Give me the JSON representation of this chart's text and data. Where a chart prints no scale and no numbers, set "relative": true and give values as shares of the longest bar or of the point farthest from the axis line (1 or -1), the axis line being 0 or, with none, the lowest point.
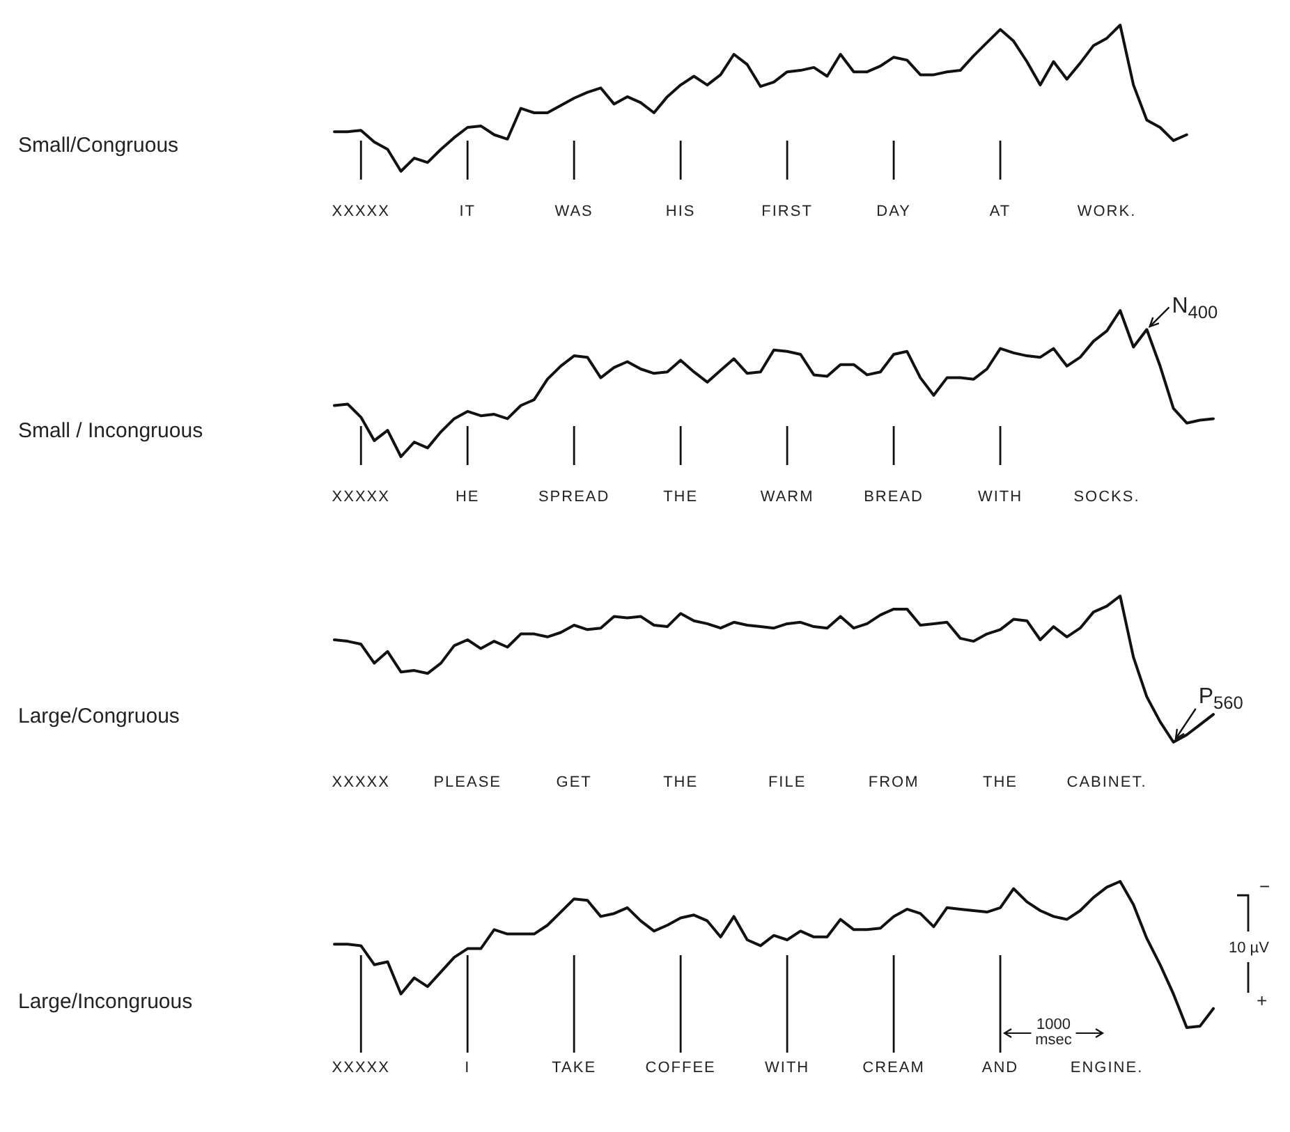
{
  "chart_data": [
    {
      "type": "line",
      "ylabel": "Small/Congruous",
      "relative": true,
      "categories": [
        null,
        null,
        "XXXXX",
        null,
        null,
        null,
        null,
        null,
        null,
        null,
        "IT",
        null,
        null,
        null,
        null,
        null,
        null,
        null,
        "WAS",
        null,
        null,
        null,
        null,
        null,
        null,
        null,
        "HIS",
        null,
        null,
        null,
        null,
        null,
        null,
        null,
        "FIRST",
        null,
        null,
        null,
        null,
        null,
        null,
        null,
        "DAY",
        null,
        null,
        null,
        null,
        null,
        null,
        null,
        "AT",
        null,
        null,
        null,
        null,
        null,
        null,
        null,
        "WORK.",
        null,
        null,
        null,
        null,
        null,
        null,
        null,
        null
      ],
      "series": [
        {
          "color": "#111111",
          "values": [
            0.27,
            0.27,
            0.28,
            0.2,
            0.15,
            0,
            0.09,
            0.06,
            0.15,
            0.23,
            0.3,
            0.31,
            0.25,
            0.22,
            0.43,
            0.4,
            0.4,
            0.45,
            0.5,
            0.54,
            0.57,
            0.46,
            0.51,
            0.47,
            0.4,
            0.51,
            0.59,
            0.65,
            0.59,
            0.66,
            0.8,
            0.73,
            0.58,
            0.61,
            0.68,
            0.69,
            0.71,
            0.65,
            0.8,
            0.68,
            0.68,
            0.72,
            0.78,
            0.76,
            0.66,
            0.66,
            0.68,
            0.69,
            0.79,
            0.88,
            0.97,
            0.89,
            0.75,
            0.59,
            0.75,
            0.63,
            0.74,
            0.86,
            0.91,
            1,
            0.59,
            0.35,
            0.3,
            0.21,
            0.25,
            null,
            null
          ]
        }
      ],
      "ref_lines": [
        {
          "axis": "x",
          "value": "XXXXX"
        },
        {
          "axis": "x",
          "value": "IT"
        },
        {
          "axis": "x",
          "value": "WAS"
        },
        {
          "axis": "x",
          "value": "HIS"
        },
        {
          "axis": "x",
          "value": "FIRST"
        },
        {
          "axis": "x",
          "value": "DAY"
        },
        {
          "axis": "x",
          "value": "AT"
        }
      ]
    },
    {
      "type": "line",
      "ylabel": "Small / Incongruous",
      "relative": true,
      "categories": [
        null,
        null,
        "XXXXX",
        null,
        null,
        null,
        null,
        null,
        null,
        null,
        "HE",
        null,
        null,
        null,
        null,
        null,
        null,
        null,
        "SPREAD",
        null,
        null,
        null,
        null,
        null,
        null,
        null,
        "THE",
        null,
        null,
        null,
        null,
        null,
        null,
        null,
        "WARM",
        null,
        null,
        null,
        null,
        null,
        null,
        null,
        "BREAD",
        null,
        null,
        null,
        null,
        null,
        null,
        null,
        "WITH",
        null,
        null,
        null,
        null,
        null,
        null,
        null,
        "SOCKS.",
        null,
        null,
        null,
        null,
        null,
        null,
        null,
        null
      ],
      "series": [
        {
          "color": "#111111",
          "values": [
            0.35,
            0.36,
            0.27,
            0.11,
            0.18,
            0,
            0.1,
            0.06,
            0.17,
            0.26,
            0.31,
            0.28,
            0.29,
            0.26,
            0.35,
            0.39,
            0.53,
            0.62,
            0.69,
            0.68,
            0.54,
            0.61,
            0.65,
            0.6,
            0.57,
            0.58,
            0.66,
            0.58,
            0.51,
            0.59,
            0.67,
            0.57,
            0.58,
            0.73,
            0.72,
            0.7,
            0.56,
            0.55,
            0.63,
            0.63,
            0.56,
            0.58,
            0.7,
            0.72,
            0.54,
            0.42,
            0.54,
            0.54,
            0.53,
            0.6,
            0.74,
            0.71,
            0.69,
            0.68,
            0.74,
            0.62,
            0.68,
            0.79,
            0.86,
            1,
            0.75,
            0.87,
            0.62,
            0.33,
            0.23,
            0.25,
            0.26
          ]
        }
      ],
      "ref_lines": [
        {
          "axis": "x",
          "value": "XXXXX"
        },
        {
          "axis": "x",
          "value": "HE"
        },
        {
          "axis": "x",
          "value": "SPREAD"
        },
        {
          "axis": "x",
          "value": "THE"
        },
        {
          "axis": "x",
          "value": "WARM"
        },
        {
          "axis": "x",
          "value": "BREAD"
        },
        {
          "axis": "x",
          "value": "WITH"
        }
      ],
      "annotations": [
        "N$_{400}$"
      ]
    },
    {
      "type": "line",
      "ylabel": "Large/Congruous",
      "relative": true,
      "categories": [
        null,
        null,
        "XXXXX",
        null,
        null,
        null,
        null,
        null,
        null,
        null,
        "PLEASE",
        null,
        null,
        null,
        null,
        null,
        null,
        null,
        "GET",
        null,
        null,
        null,
        null,
        null,
        null,
        null,
        "THE",
        null,
        null,
        null,
        null,
        null,
        null,
        null,
        "FILE",
        null,
        null,
        null,
        null,
        null,
        null,
        null,
        "FROM",
        null,
        null,
        null,
        null,
        null,
        null,
        null,
        "THE",
        null,
        null,
        null,
        null,
        null,
        null,
        null,
        "CABINET.",
        null,
        null,
        null,
        null,
        null,
        null,
        null,
        null
      ],
      "series": [
        {
          "color": "#111111",
          "values": [
            0.7,
            0.69,
            0.67,
            0.54,
            0.62,
            0.48,
            0.49,
            0.47,
            0.54,
            0.66,
            0.7,
            0.64,
            0.69,
            0.65,
            0.74,
            0.74,
            0.72,
            0.75,
            0.8,
            0.77,
            0.78,
            0.86,
            0.85,
            0.86,
            0.8,
            0.79,
            0.88,
            0.83,
            0.81,
            0.78,
            0.82,
            0.8,
            0.79,
            0.78,
            0.81,
            0.82,
            0.79,
            0.78,
            0.86,
            0.78,
            0.81,
            0.87,
            0.91,
            0.91,
            0.8,
            0.81,
            0.82,
            0.71,
            0.69,
            0.74,
            0.77,
            0.84,
            0.83,
            0.7,
            0.79,
            0.72,
            0.78,
            0.89,
            0.93,
            1,
            0.58,
            0.31,
            0.14,
            0,
            0.05,
            0.12,
            0.19
          ]
        }
      ],
      "annotations": [
        "P$_{560}$"
      ]
    },
    {
      "type": "line",
      "ylabel": "Large/Incongruous",
      "relative": true,
      "categories": [
        null,
        null,
        "XXXXX",
        null,
        null,
        null,
        null,
        null,
        null,
        null,
        "I",
        null,
        null,
        null,
        null,
        null,
        null,
        null,
        "TAKE",
        null,
        null,
        null,
        null,
        null,
        null,
        null,
        "COFFEE",
        null,
        null,
        null,
        null,
        null,
        null,
        null,
        "WITH",
        null,
        null,
        null,
        null,
        null,
        null,
        null,
        "CREAM",
        null,
        null,
        null,
        null,
        null,
        null,
        null,
        "AND",
        null,
        null,
        null,
        null,
        null,
        null,
        null,
        "ENGINE.",
        null,
        null,
        null,
        null,
        null,
        null,
        null,
        null
      ],
      "series": [
        {
          "color": "#111111",
          "values": [
            0.57,
            0.57,
            0.56,
            0.43,
            0.45,
            0.23,
            0.34,
            0.28,
            0.38,
            0.48,
            0.54,
            0.54,
            0.67,
            0.64,
            0.64,
            0.64,
            0.7,
            0.79,
            0.88,
            0.87,
            0.76,
            0.78,
            0.82,
            0.73,
            0.66,
            0.7,
            0.75,
            0.77,
            0.73,
            0.62,
            0.76,
            0.6,
            0.56,
            0.63,
            0.6,
            0.66,
            0.62,
            0.62,
            0.74,
            0.67,
            0.67,
            0.68,
            0.76,
            0.81,
            0.78,
            0.69,
            0.82,
            0.81,
            0.8,
            0.79,
            0.82,
            0.95,
            0.86,
            0.8,
            0.76,
            0.74,
            0.8,
            0.89,
            0.96,
            1,
            0.84,
            0.61,
            0.43,
            0.23,
            0,
            0.01,
            0.13
          ]
        }
      ],
      "ref_lines": [
        {
          "axis": "x",
          "value": "XXXXX"
        },
        {
          "axis": "x",
          "value": "I"
        },
        {
          "axis": "x",
          "value": "TAKE"
        },
        {
          "axis": "x",
          "value": "COFFEE"
        },
        {
          "axis": "x",
          "value": "WITH"
        },
        {
          "axis": "x",
          "value": "CREAM"
        },
        {
          "axis": "x",
          "value": "AND"
        }
      ],
      "annotations": [
        "−",
        "10 µV",
        "+",
        "1000 msec"
      ]
    }
  ]
}
